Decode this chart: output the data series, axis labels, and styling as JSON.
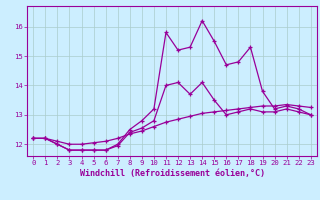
{
  "x": [
    0,
    1,
    2,
    3,
    4,
    5,
    6,
    7,
    8,
    9,
    10,
    11,
    12,
    13,
    14,
    15,
    16,
    17,
    18,
    19,
    20,
    21,
    22,
    23
  ],
  "line1": [
    12.2,
    12.2,
    12.0,
    11.8,
    11.8,
    11.8,
    11.8,
    12.0,
    12.5,
    12.8,
    13.2,
    15.8,
    15.2,
    15.3,
    16.2,
    15.5,
    14.7,
    14.8,
    15.3,
    13.8,
    13.2,
    13.3,
    13.2,
    13.0
  ],
  "line2": [
    12.2,
    12.2,
    12.0,
    11.8,
    11.8,
    11.8,
    11.8,
    11.95,
    12.4,
    12.55,
    12.8,
    14.0,
    14.1,
    13.7,
    14.1,
    13.5,
    13.0,
    13.1,
    13.2,
    13.1,
    13.1,
    13.2,
    13.1,
    13.0
  ],
  "line3": [
    12.2,
    12.2,
    12.1,
    12.0,
    12.0,
    12.05,
    12.1,
    12.2,
    12.35,
    12.45,
    12.6,
    12.75,
    12.85,
    12.95,
    13.05,
    13.1,
    13.15,
    13.2,
    13.25,
    13.3,
    13.3,
    13.35,
    13.3,
    13.25
  ],
  "xlim": [
    -0.5,
    23.5
  ],
  "ylim": [
    11.6,
    16.7
  ],
  "yticks": [
    12,
    13,
    14,
    15,
    16
  ],
  "xticks": [
    0,
    1,
    2,
    3,
    4,
    5,
    6,
    7,
    8,
    9,
    10,
    11,
    12,
    13,
    14,
    15,
    16,
    17,
    18,
    19,
    20,
    21,
    22,
    23
  ],
  "line_color": "#990099",
  "bg_color": "#cceeff",
  "grid_color": "#aacccc",
  "xlabel": "Windchill (Refroidissement éolien,°C)",
  "tick_fontsize": 5.2,
  "xlabel_fontsize": 6.0,
  "lw": 0.9,
  "marker_size": 3.0
}
